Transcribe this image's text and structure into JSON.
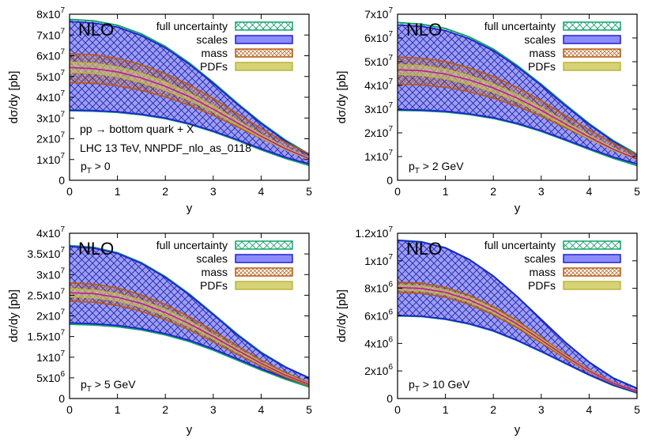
{
  "colors": {
    "full": "#12a36a",
    "scales_fill": "#8c8cff",
    "scales_line": "#1f1fd6",
    "mass": "#b85a10",
    "pdfs_fill": "#d6d275",
    "central": "#c0189b"
  },
  "legend_labels": [
    "full uncertainty",
    "scales",
    "mass",
    "PDFs"
  ],
  "chart_data": [
    {
      "type": "area",
      "tag": "NLO",
      "annotation_lines": [
        "pp → bottom quark + X",
        "LHC 13 TeV, NNPDF_nlo_as_0118"
      ],
      "cut": {
        "base": "p",
        "sub": "T",
        "rest": " > 0"
      },
      "xlabel": "y",
      "ylabel": "dσ/dy [pb]",
      "xlim": [
        0,
        5
      ],
      "ylim": [
        0,
        80000000.0
      ],
      "xticks": [
        0,
        1,
        2,
        3,
        4,
        5
      ],
      "yticks": [
        {
          "value": 0,
          "mant": "0",
          "exp": ""
        },
        {
          "value": 10000000.0,
          "mant": "1x10",
          "exp": "7"
        },
        {
          "value": 20000000.0,
          "mant": "2x10",
          "exp": "7"
        },
        {
          "value": 30000000.0,
          "mant": "3x10",
          "exp": "7"
        },
        {
          "value": 40000000.0,
          "mant": "4x10",
          "exp": "7"
        },
        {
          "value": 50000000.0,
          "mant": "5x10",
          "exp": "7"
        },
        {
          "value": 60000000.0,
          "mant": "6x10",
          "exp": "7"
        },
        {
          "value": 70000000.0,
          "mant": "7x10",
          "exp": "7"
        },
        {
          "value": 80000000.0,
          "mant": "8x10",
          "exp": "7"
        }
      ],
      "x": [
        0,
        0.5,
        1,
        1.5,
        2,
        2.5,
        3,
        3.5,
        4,
        4.5,
        5
      ],
      "series": [
        {
          "name": "full uncertainty",
          "upper": [
            77500000.0,
            76800000.0,
            74700000.0,
            70500000.0,
            64500000.0,
            56500000.0,
            47200000.0,
            37200000.0,
            27800000.0,
            19500000.0,
            12600000.0
          ],
          "lower": [
            33500000.0,
            33300000.0,
            32700000.0,
            31500000.0,
            29700000.0,
            27000000.0,
            23400000.0,
            19200000.0,
            14700000.0,
            10600000.0,
            7200000.0
          ]
        },
        {
          "name": "scales",
          "upper": [
            76500000.0,
            75800000.0,
            73800000.0,
            69700000.0,
            63800000.0,
            55900000.0,
            46700000.0,
            36700000.0,
            27300000.0,
            19000000.0,
            12100000.0
          ],
          "lower": [
            33800000.0,
            33600000.0,
            33000000.0,
            31800000.0,
            30000000.0,
            27300000.0,
            23700000.0,
            19600000.0,
            15200000.0,
            11100000.0,
            7900000.0
          ]
        },
        {
          "name": "mass",
          "upper": [
            61000000.0,
            60500000.0,
            58800000.0,
            55700000.0,
            51500000.0,
            46000000.0,
            39500000.0,
            32200000.0,
            25000000.0,
            18300000.0,
            12800000.0
          ],
          "lower": [
            47000000.0,
            46700000.0,
            45500000.0,
            43300000.0,
            40200000.0,
            36200000.0,
            31300000.0,
            25800000.0,
            20200000.0,
            15000000.0,
            10600000.0
          ]
        },
        {
          "name": "PDFs",
          "upper": [
            57000000.0,
            56400000.0,
            54700000.0,
            51600000.0,
            47400000.0,
            42100000.0,
            35800000.0,
            28900000.0,
            22100000.0,
            15900000.0,
            10800000.0
          ],
          "lower": [
            52000000.0,
            51500000.0,
            49900000.0,
            47100000.0,
            43300000.0,
            38600000.0,
            32900000.0,
            26600000.0,
            20400000.0,
            14700000.0,
            10000000.0
          ]
        },
        {
          "name": "",
          "role": "central",
          "values": [
            54300000.0,
            53800000.0,
            52200000.0,
            49300000.0,
            45300000.0,
            40300000.0,
            34300000.0,
            27700000.0,
            21200000.0,
            15300000.0,
            10400000.0
          ]
        }
      ]
    },
    {
      "type": "area",
      "tag": "NLO",
      "annotation_lines": [],
      "cut": {
        "base": "p",
        "sub": "T",
        "rest": " > 2 GeV"
      },
      "xlabel": "y",
      "ylabel": "dσ/dy [pb]",
      "xlim": [
        0,
        5
      ],
      "ylim": [
        0,
        70000000.0
      ],
      "xticks": [
        0,
        1,
        2,
        3,
        4,
        5
      ],
      "yticks": [
        {
          "value": 0,
          "mant": "0",
          "exp": ""
        },
        {
          "value": 10000000.0,
          "mant": "1x10",
          "exp": "7"
        },
        {
          "value": 20000000.0,
          "mant": "2x10",
          "exp": "7"
        },
        {
          "value": 30000000.0,
          "mant": "3x10",
          "exp": "7"
        },
        {
          "value": 40000000.0,
          "mant": "4x10",
          "exp": "7"
        },
        {
          "value": 50000000.0,
          "mant": "5x10",
          "exp": "7"
        },
        {
          "value": 60000000.0,
          "mant": "6x10",
          "exp": "7"
        },
        {
          "value": 70000000.0,
          "mant": "7x10",
          "exp": "7"
        }
      ],
      "x": [
        0,
        0.5,
        1,
        1.5,
        2,
        2.5,
        3,
        3.5,
        4,
        4.5,
        5
      ],
      "series": [
        {
          "name": "full uncertainty",
          "upper": [
            66500000.0,
            65800000.0,
            64000000.0,
            60400000.0,
            55300000.0,
            48400000.0,
            40500000.0,
            32000000.0,
            23900000.0,
            16800000.0,
            11000000.0
          ],
          "lower": [
            29500000.0,
            29300000.0,
            28800000.0,
            27700000.0,
            26100000.0,
            23700000.0,
            20600000.0,
            16900000.0,
            13000000.0,
            9300000.0,
            6200000.0
          ]
        },
        {
          "name": "scales",
          "upper": [
            65500000.0,
            64900000.0,
            63100000.0,
            59600000.0,
            54600000.0,
            47800000.0,
            40000000.0,
            31500000.0,
            23500000.0,
            16400000.0,
            10600000.0
          ],
          "lower": [
            29800000.0,
            29600000.0,
            29100000.0,
            28000000.0,
            26400000.0,
            24000000.0,
            20900000.0,
            17200000.0,
            13400000.0,
            9800000.0,
            6900000.0
          ]
        },
        {
          "name": "mass",
          "upper": [
            52000000.0,
            51500000.0,
            50100000.0,
            47400000.0,
            43800000.0,
            39100000.0,
            33600000.0,
            27400000.0,
            21300000.0,
            15600000.0,
            10900000.0
          ],
          "lower": [
            40500000.0,
            40200000.0,
            39200000.0,
            37300000.0,
            34600000.0,
            31200000.0,
            27000000.0,
            22200000.0,
            17400000.0,
            12900000.0,
            9100000.0
          ]
        },
        {
          "name": "PDFs",
          "upper": [
            48800000.0,
            48300000.0,
            46900000.0,
            44200000.0,
            40600000.0,
            36100000.0,
            30700000.0,
            24800000.0,
            19000000.0,
            13700000.0,
            9300000.0
          ],
          "lower": [
            44600000.0,
            44200000.0,
            42800000.0,
            40400000.0,
            37200000.0,
            33100000.0,
            28200000.0,
            22800000.0,
            17500000.0,
            12600000.0,
            8600000.0
          ]
        },
        {
          "name": "",
          "role": "central",
          "values": [
            46600000.0,
            46200000.0,
            44800000.0,
            42300000.0,
            38900000.0,
            34600000.0,
            29500000.0,
            23800000.0,
            18200000.0,
            13100000.0,
            8900000.0
          ]
        }
      ]
    },
    {
      "type": "area",
      "tag": "NLO",
      "annotation_lines": [],
      "cut": {
        "base": "p",
        "sub": "T",
        "rest": " > 5 GeV"
      },
      "xlabel": "y",
      "ylabel": "dσ/dy [pb]",
      "xlim": [
        0,
        5
      ],
      "ylim": [
        0,
        40000000.0
      ],
      "xticks": [
        0,
        1,
        2,
        3,
        4,
        5
      ],
      "yticks": [
        {
          "value": 0,
          "mant": "0",
          "exp": ""
        },
        {
          "value": 5000000.0,
          "mant": "5x10",
          "exp": "6"
        },
        {
          "value": 10000000.0,
          "mant": "1x10",
          "exp": "7"
        },
        {
          "value": 15000000.0,
          "mant": "1.5x10",
          "exp": "7"
        },
        {
          "value": 20000000.0,
          "mant": "2x10",
          "exp": "7"
        },
        {
          "value": 25000000.0,
          "mant": "2.5x10",
          "exp": "7"
        },
        {
          "value": 30000000.0,
          "mant": "3x10",
          "exp": "7"
        },
        {
          "value": 35000000.0,
          "mant": "3.5x10",
          "exp": "7"
        },
        {
          "value": 40000000.0,
          "mant": "4x10",
          "exp": "7"
        }
      ],
      "x": [
        0,
        0.5,
        1,
        1.5,
        2,
        2.5,
        3,
        3.5,
        4,
        4.5,
        5
      ],
      "series": [
        {
          "name": "full uncertainty",
          "upper": [
            37000000.0,
            36600000.0,
            35300000.0,
            32900000.0,
            29500000.0,
            25300000.0,
            20500000.0,
            15600000.0,
            11200000.0,
            7700000.0,
            5000000.0
          ],
          "lower": [
            18000000.0,
            17800000.0,
            17400000.0,
            16600000.0,
            15400000.0,
            13800000.0,
            11700000.0,
            9300000.0,
            6900000.0,
            4700000.0,
            2800000.0
          ]
        },
        {
          "name": "scales",
          "upper": [
            36800000.0,
            36400000.0,
            35100000.0,
            32700000.0,
            29300000.0,
            25100000.0,
            20300000.0,
            15400000.0,
            11000000.0,
            7600000.0,
            5000000.0
          ],
          "lower": [
            18300000.0,
            18100000.0,
            17700000.0,
            16900000.0,
            15700000.0,
            14100000.0,
            12000000.0,
            9600000.0,
            7200000.0,
            5000000.0,
            3200000.0
          ]
        },
        {
          "name": "mass",
          "upper": [
            28000000.0,
            27700000.0,
            26800000.0,
            25100000.0,
            22800000.0,
            19800000.0,
            16400000.0,
            12800000.0,
            9300000.0,
            6300000.0,
            3800000.0
          ],
          "lower": [
            23500000.0,
            23300000.0,
            22500000.0,
            21100000.0,
            19100000.0,
            16600000.0,
            13700000.0,
            10700000.0,
            7800000.0,
            5200000.0,
            3100000.0
          ]
        },
        {
          "name": "PDFs",
          "upper": [
            26600000.0,
            26300000.0,
            25400000.0,
            23800000.0,
            21600000.0,
            18800000.0,
            15500000.0,
            12100000.0,
            8800000.0,
            6000000.0,
            3600000.0
          ],
          "lower": [
            24600000.0,
            24400000.0,
            23600000.0,
            22100000.0,
            20000000.0,
            17400000.0,
            14400000.0,
            11200000.0,
            8200000.0,
            5500000.0,
            3300000.0
          ]
        },
        {
          "name": "",
          "role": "central",
          "values": [
            25600000.0,
            25400000.0,
            24500000.0,
            23000000.0,
            20800000.0,
            18100000.0,
            15000000.0,
            11700000.0,
            8500000.0,
            5700000.0,
            3400000.0
          ]
        }
      ]
    },
    {
      "type": "area",
      "tag": "NLO",
      "annotation_lines": [],
      "cut": {
        "base": "p",
        "sub": "T",
        "rest": " > 10 GeV"
      },
      "xlabel": "y",
      "ylabel": "dσ/dy [pb]",
      "xlim": [
        0,
        5
      ],
      "ylim": [
        0,
        12000000.0
      ],
      "xticks": [
        0,
        1,
        2,
        3,
        4,
        5
      ],
      "yticks": [
        {
          "value": 0,
          "mant": "0",
          "exp": ""
        },
        {
          "value": 2000000.0,
          "mant": "2x10",
          "exp": "6"
        },
        {
          "value": 4000000.0,
          "mant": "4x10",
          "exp": "6"
        },
        {
          "value": 6000000.0,
          "mant": "6x10",
          "exp": "6"
        },
        {
          "value": 8000000.0,
          "mant": "8x10",
          "exp": "6"
        },
        {
          "value": 10000000.0,
          "mant": "1x10",
          "exp": "7"
        },
        {
          "value": 12000000.0,
          "mant": "1.2x10",
          "exp": "7"
        }
      ],
      "x": [
        0,
        0.5,
        1,
        1.5,
        2,
        2.5,
        3,
        3.5,
        4,
        4.5,
        5
      ],
      "series": [
        {
          "name": "full uncertainty",
          "upper": [
            11500000.0,
            11380000.0,
            10950000.0,
            10100000.0,
            8900000.0,
            7400000.0,
            5750000.0,
            4100000.0,
            2650000.0,
            1500000.0,
            750000.0
          ],
          "lower": [
            6000000.0,
            5950000.0,
            5750000.0,
            5400000.0,
            4900000.0,
            4200000.0,
            3400000.0,
            2550000.0,
            1700000.0,
            950000.0,
            400000.0
          ]
        },
        {
          "name": "scales",
          "upper": [
            11480000.0,
            11360000.0,
            10930000.0,
            10080000.0,
            8880000.0,
            7380000.0,
            5730000.0,
            4080000.0,
            2630000.0,
            1480000.0,
            730000.0
          ],
          "lower": [
            6030000.0,
            5980000.0,
            5780000.0,
            5430000.0,
            4930000.0,
            4230000.0,
            3430000.0,
            2580000.0,
            1730000.0,
            980000.0,
            430000.0
          ]
        },
        {
          "name": "mass",
          "upper": [
            8450000.0,
            8380000.0,
            8080000.0,
            7500000.0,
            6680000.0,
            5650000.0,
            4450000.0,
            3220000.0,
            2100000.0,
            1180000.0,
            550000.0
          ],
          "lower": [
            7700000.0,
            7630000.0,
            7350000.0,
            6820000.0,
            6070000.0,
            5130000.0,
            4040000.0,
            2920000.0,
            1900000.0,
            1070000.0,
            480000.0
          ]
        },
        {
          "name": "PDFs",
          "upper": [
            8250000.0,
            8180000.0,
            7890000.0,
            7330000.0,
            6530000.0,
            5530000.0,
            4360000.0,
            3160000.0,
            2060000.0,
            1160000.0,
            540000.0
          ],
          "lower": [
            7880000.0,
            7810000.0,
            7530000.0,
            6990000.0,
            6220000.0,
            5260000.0,
            4140000.0,
            2990000.0,
            1940000.0,
            1090000.0,
            500000.0
          ]
        },
        {
          "name": "",
          "role": "central",
          "values": [
            8060000.0,
            7990000.0,
            7710000.0,
            7160000.0,
            6380000.0,
            5400000.0,
            4250000.0,
            3070000.0,
            2000000.0,
            1120000.0,
            520000.0
          ]
        }
      ]
    }
  ]
}
